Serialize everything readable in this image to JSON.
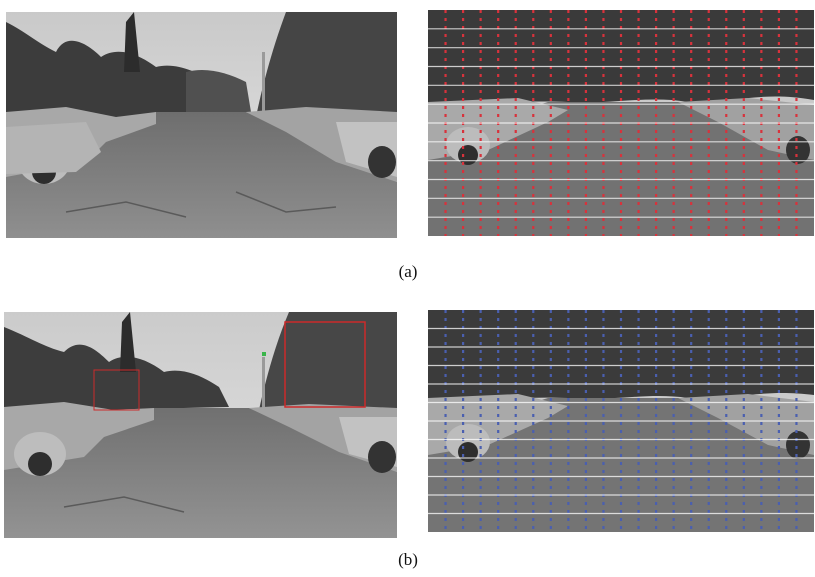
{
  "figure": {
    "row_a": {
      "caption": "(a)"
    },
    "row_b": {
      "caption": "(b)"
    }
  },
  "colors": {
    "grid_a": "#d8323c",
    "grid_b": "#4a5fb0",
    "box_b": "#cc2a2a",
    "annotation_green": "#39b54a"
  }
}
